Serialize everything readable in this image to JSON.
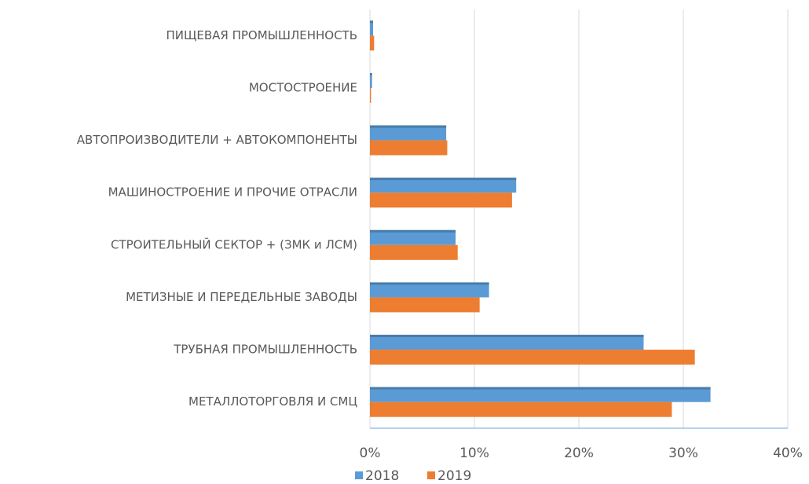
{
  "chart_data": {
    "type": "hbar",
    "categories": [
      "ПИЩЕВАЯ ПРОМЫШЛЕННОСТЬ",
      "МОСТОСТРОЕНИЕ",
      "АВТОПРОИЗВОДИТЕЛИ + АВТОКОМПОНЕНТЫ",
      "МАШИНОСТРОЕНИЕ И ПРОЧИЕ ОТРАСЛИ",
      "СТРОИТЕЛЬНЫЙ СЕКТОР + (ЗМК и ЛСМ)",
      "МЕТИЗНЫЕ И ПЕРЕДЕЛЬНЫЕ ЗАВОДЫ",
      "ТРУБНАЯ ПРОМЫШЛЕННОСТЬ",
      "МЕТАЛЛОТОРГОВЛЯ И СМЦ"
    ],
    "series": [
      {
        "name": "2018",
        "color": "#5b9bd5",
        "values": [
          0.3,
          0.2,
          7.3,
          14.0,
          8.2,
          11.4,
          26.2,
          32.6
        ]
      },
      {
        "name": "2019",
        "color": "#ed7d31",
        "values": [
          0.4,
          0.1,
          7.4,
          13.6,
          8.4,
          10.5,
          31.1,
          28.9
        ]
      }
    ],
    "xlim": [
      0,
      40
    ],
    "xticks": [
      {
        "value": 0,
        "label": "0%"
      },
      {
        "value": 10,
        "label": "10%"
      },
      {
        "value": 20,
        "label": "20%"
      },
      {
        "value": 30,
        "label": "30%"
      },
      {
        "value": 40,
        "label": "40%"
      }
    ],
    "grid": true,
    "legend": "bottom"
  }
}
